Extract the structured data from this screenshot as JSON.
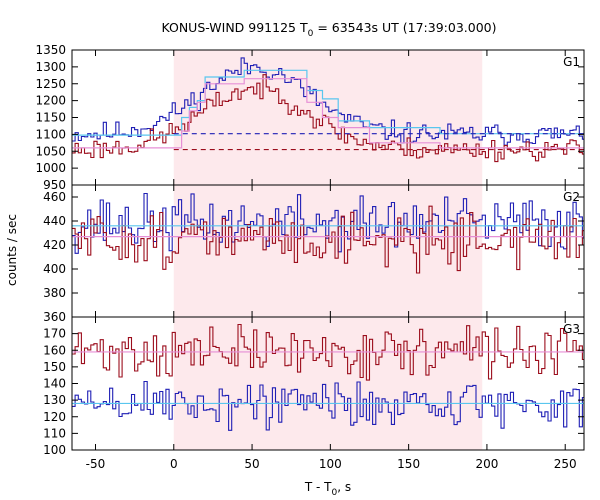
{
  "chart_data": {
    "type": "line",
    "title": "KONUS-WIND 991125 T",
    "title_sub": "0",
    "title_rest": " = 63543s UT (17:39:03.000)",
    "xlabel": "T - T",
    "xlabel_sub": "0",
    "xlabel_rest": ", s",
    "ylabel": "counts / sec",
    "xlim": [
      -65,
      262
    ],
    "x_ticks": [
      -50,
      0,
      50,
      100,
      150,
      200,
      250
    ],
    "highlight_interval": [
      0,
      197
    ],
    "colors": {
      "shade": "#fde9ec",
      "blue": "#1f1fb5",
      "red": "#9b0d1c",
      "cyan": "#59c6ee",
      "pink": "#e68fd6",
      "frame": "#000000"
    },
    "panels": [
      {
        "name": "G1",
        "ylim": [
          950,
          1350
        ],
        "y_ticks": [
          950,
          1000,
          1050,
          1100,
          1150,
          1200,
          1250,
          1300,
          1350
        ],
        "background_levels": [
          {
            "color": "blue",
            "value": 1102
          },
          {
            "color": "red",
            "value": 1055
          }
        ],
        "series": [
          {
            "color": "blue",
            "baseline": 1100,
            "noise": 16,
            "seed": 11,
            "pulse": {
              "amp": 200,
              "center": 52,
              "sigma": 34
            }
          },
          {
            "color": "red",
            "baseline": 1055,
            "noise": 16,
            "seed": 23,
            "pulse": {
              "amp": 180,
              "center": 52,
              "sigma": 34
            }
          }
        ],
        "fit_steps": {
          "cyan": [
            [
              -65,
              1098
            ],
            [
              5,
              1150
            ],
            [
              10,
              1180
            ],
            [
              15,
              1200
            ],
            [
              20,
              1270
            ],
            [
              45,
              1290
            ],
            [
              85,
              1230
            ],
            [
              95,
              1205
            ],
            [
              105,
              1140
            ],
            [
              125,
              1120
            ],
            [
              170,
              1102
            ],
            [
              262,
              1102
            ]
          ],
          "pink": [
            [
              -65,
              1060
            ],
            [
              5,
              1110
            ],
            [
              10,
              1170
            ],
            [
              15,
              1195
            ],
            [
              20,
              1250
            ],
            [
              45,
              1265
            ],
            [
              85,
              1195
            ],
            [
              95,
              1150
            ],
            [
              105,
              1120
            ],
            [
              125,
              1075
            ],
            [
              170,
              1060
            ],
            [
              262,
              1060
            ]
          ]
        }
      },
      {
        "name": "G2",
        "ylim": [
          360,
          470
        ],
        "y_ticks": [
          360,
          380,
          400,
          420,
          440,
          460
        ],
        "series": [
          {
            "color": "blue",
            "baseline": 438,
            "noise": 11,
            "seed": 37
          },
          {
            "color": "red",
            "baseline": 425,
            "noise": 11,
            "seed": 51
          }
        ],
        "fit_levels": [
          {
            "color": "cyan",
            "value": 436
          },
          {
            "color": "pink",
            "value": 427
          }
        ]
      },
      {
        "name": "G3",
        "ylim": [
          100,
          180
        ],
        "y_ticks": [
          100,
          110,
          120,
          130,
          140,
          150,
          160,
          170
        ],
        "series": [
          {
            "color": "red",
            "baseline": 159,
            "noise": 7.5,
            "seed": 71
          },
          {
            "color": "blue",
            "baseline": 128,
            "noise": 7.5,
            "seed": 89
          }
        ],
        "fit_levels": [
          {
            "color": "pink",
            "value": 159
          },
          {
            "color": "cyan",
            "value": 128
          }
        ]
      }
    ]
  }
}
